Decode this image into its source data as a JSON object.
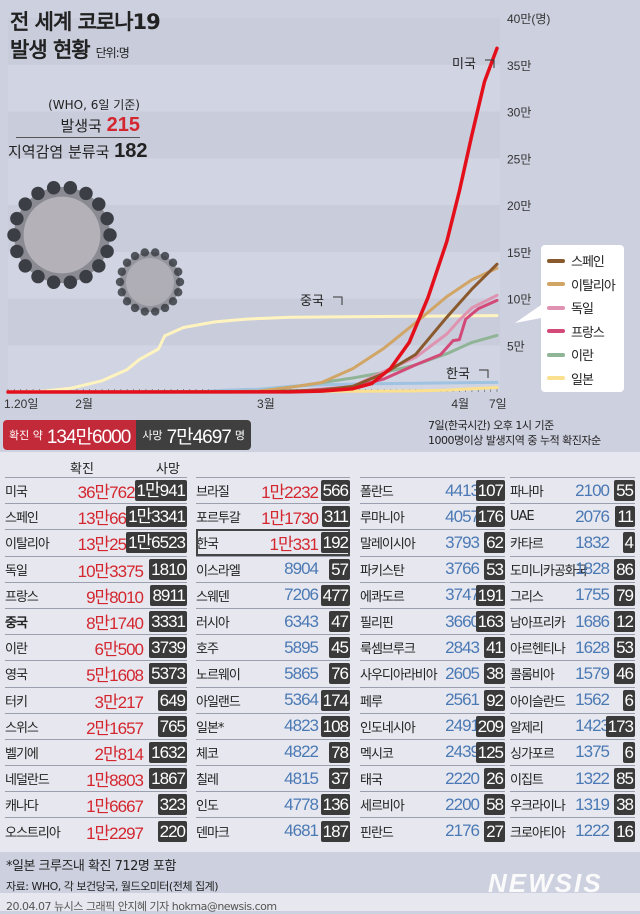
{
  "header": {
    "title_line1": "전 세계 코로나19",
    "title_line2": "발생 현황",
    "unit": "단위:명",
    "who_note": "(WHO, 6일 기준)",
    "occurrence_label": "발생국",
    "occurrence_count": "215",
    "local_label": "지역감염 분류국",
    "local_count": "182"
  },
  "chart_data": {
    "type": "line",
    "title": "전 세계 코로나19 발생 현황",
    "ylabel": "(명)",
    "xlabel": "",
    "ylim": [
      0,
      400000
    ],
    "y_ticks": [
      "5만",
      "10만",
      "15만",
      "20만",
      "25만",
      "30만",
      "35만",
      "40만(명)"
    ],
    "x_ticks": [
      {
        "label": "1.20일",
        "day": 0
      },
      {
        "label": "2월",
        "day": 12
      },
      {
        "label": "3월",
        "day": 41
      },
      {
        "label": "4월",
        "day": 72
      },
      {
        "label": "7일",
        "day": 78
      }
    ],
    "x_unit": "days since Jan 20",
    "annotations": [
      "미국",
      "중국",
      "한국"
    ],
    "series": [
      {
        "name": "미국",
        "color": "#e3101c",
        "points": [
          [
            0,
            0
          ],
          [
            45,
            0.01
          ],
          [
            50,
            0.1
          ],
          [
            55,
            0.35
          ],
          [
            58,
            0.9
          ],
          [
            61,
            2.5
          ],
          [
            64,
            5.3
          ],
          [
            67,
            10.1
          ],
          [
            70,
            16.1
          ],
          [
            72,
            21.5
          ],
          [
            74,
            27.5
          ],
          [
            76,
            33.2
          ],
          [
            78,
            36.76
          ]
        ]
      },
      {
        "name": "스페인",
        "color": "#8a5a2e",
        "points": [
          [
            0,
            0
          ],
          [
            40,
            0.01
          ],
          [
            50,
            0.2
          ],
          [
            55,
            0.6
          ],
          [
            60,
            2.0
          ],
          [
            65,
            4.0
          ],
          [
            70,
            8.0
          ],
          [
            74,
            11.0
          ],
          [
            78,
            13.67
          ]
        ]
      },
      {
        "name": "이탈리아",
        "color": "#d1a565",
        "points": [
          [
            0,
            0
          ],
          [
            35,
            0.02
          ],
          [
            40,
            0.1
          ],
          [
            45,
            0.5
          ],
          [
            50,
            1.0
          ],
          [
            55,
            2.5
          ],
          [
            60,
            4.7
          ],
          [
            65,
            7.4
          ],
          [
            70,
            10.2
          ],
          [
            74,
            12.0
          ],
          [
            78,
            13.25
          ]
        ]
      },
      {
        "name": "독일",
        "color": "#df93b0",
        "points": [
          [
            0,
            0
          ],
          [
            45,
            0.02
          ],
          [
            55,
            0.6
          ],
          [
            60,
            2.2
          ],
          [
            65,
            3.7
          ],
          [
            70,
            6.2
          ],
          [
            72,
            7.7
          ],
          [
            74,
            9.0
          ],
          [
            78,
            10.34
          ]
        ]
      },
      {
        "name": "프랑스",
        "color": "#d34a78",
        "points": [
          [
            0,
            0
          ],
          [
            45,
            0.02
          ],
          [
            55,
            0.5
          ],
          [
            60,
            1.4
          ],
          [
            65,
            2.9
          ],
          [
            69,
            4.0
          ],
          [
            71,
            5.5
          ],
          [
            72,
            5.6
          ],
          [
            73,
            7.8
          ],
          [
            75,
            8.9
          ],
          [
            78,
            9.8
          ]
        ]
      },
      {
        "name": "이란",
        "color": "#8fb596",
        "points": [
          [
            0,
            0
          ],
          [
            35,
            0.01
          ],
          [
            40,
            0.06
          ],
          [
            45,
            0.5
          ],
          [
            50,
            1.0
          ],
          [
            55,
            1.5
          ],
          [
            60,
            2.1
          ],
          [
            65,
            2.9
          ],
          [
            70,
            4.1
          ],
          [
            74,
            5.3
          ],
          [
            78,
            6.05
          ]
        ]
      },
      {
        "name": "일본",
        "color": "#fbe08f",
        "points": [
          [
            0,
            0
          ],
          [
            40,
            0.02
          ],
          [
            55,
            0.08
          ],
          [
            65,
            0.12
          ],
          [
            70,
            0.2
          ],
          [
            78,
            0.48
          ]
        ]
      },
      {
        "name": "한국",
        "color": "#9fc3e0",
        "points": [
          [
            0,
            0
          ],
          [
            30,
            0.01
          ],
          [
            35,
            0.2
          ],
          [
            40,
            0.3
          ],
          [
            45,
            0.6
          ],
          [
            50,
            0.78
          ],
          [
            55,
            0.84
          ],
          [
            60,
            0.9
          ],
          [
            70,
            0.97
          ],
          [
            78,
            1.03
          ]
        ]
      },
      {
        "name": "중국",
        "color": "#fff4bf",
        "points": [
          [
            0,
            0
          ],
          [
            5,
            0.05
          ],
          [
            10,
            0.4
          ],
          [
            15,
            1.2
          ],
          [
            19,
            2.4
          ],
          [
            21,
            3.5
          ],
          [
            24,
            4.6
          ],
          [
            25,
            6.0
          ],
          [
            28,
            6.9
          ],
          [
            33,
            7.5
          ],
          [
            38,
            7.8
          ],
          [
            45,
            8.0
          ],
          [
            78,
            8.17
          ]
        ]
      }
    ],
    "legend": [
      "스페인",
      "이탈리아",
      "독일",
      "프랑스",
      "이란",
      "일본"
    ],
    "legend_placement": "bottom-right"
  },
  "summary": {
    "confirmed_label": "확진 약",
    "confirmed": "134만6000",
    "deaths_label": "사망",
    "deaths": "7만4697",
    "deaths_unit": "명",
    "basis_line1": "7일(한국시간) 오후 1시 기준",
    "basis_line2": "1000명이상 발생지역 중 누적 확진자순"
  },
  "table": {
    "header_confirmed": "확진",
    "header_deaths": "사망",
    "columns": [
      [
        [
          "미국",
          "36만7629",
          "1만941"
        ],
        [
          "스페인",
          "13만6675",
          "1만3341"
        ],
        [
          "이탈리아",
          "13만2547",
          "1만6523"
        ],
        [
          "독일",
          "10만3375",
          "1810"
        ],
        [
          "프랑스",
          "9만8010",
          "8911"
        ],
        [
          "중국",
          "8만1740",
          "3331"
        ],
        [
          "이란",
          "6만500",
          "3739"
        ],
        [
          "영국",
          "5만1608",
          "5373"
        ],
        [
          "터키",
          "3만217",
          "649"
        ],
        [
          "스위스",
          "2만1657",
          "765"
        ],
        [
          "벨기에",
          "2만814",
          "1632"
        ],
        [
          "네덜란드",
          "1만8803",
          "1867"
        ],
        [
          "캐나다",
          "1만6667",
          "323"
        ],
        [
          "오스트리아",
          "1만2297",
          "220"
        ]
      ],
      [
        [
          "브라질",
          "1만2232",
          "566"
        ],
        [
          "포르투갈",
          "1만1730",
          "311"
        ],
        [
          "한국",
          "1만331",
          "192"
        ],
        [
          "이스라엘",
          "8904",
          "57"
        ],
        [
          "스웨덴",
          "7206",
          "477"
        ],
        [
          "러시아",
          "6343",
          "47"
        ],
        [
          "호주",
          "5895",
          "45"
        ],
        [
          "노르웨이",
          "5865",
          "76"
        ],
        [
          "아일랜드",
          "5364",
          "174"
        ],
        [
          "일본*",
          "4823",
          "108"
        ],
        [
          "체코",
          "4822",
          "78"
        ],
        [
          "칠레",
          "4815",
          "37"
        ],
        [
          "인도",
          "4778",
          "136"
        ],
        [
          "덴마크",
          "4681",
          "187"
        ]
      ],
      [
        [
          "폴란드",
          "4413",
          "107"
        ],
        [
          "루마니아",
          "4057",
          "176"
        ],
        [
          "말레이시아",
          "3793",
          "62"
        ],
        [
          "파키스탄",
          "3766",
          "53"
        ],
        [
          "에콰도르",
          "3747",
          "191"
        ],
        [
          "필리핀",
          "3660",
          "163"
        ],
        [
          "룩셈브루크",
          "2843",
          "41"
        ],
        [
          "사우디아라비아",
          "2605",
          "38"
        ],
        [
          "페루",
          "2561",
          "92"
        ],
        [
          "인도네시아",
          "2491",
          "209"
        ],
        [
          "멕시코",
          "2439",
          "125"
        ],
        [
          "태국",
          "2220",
          "26"
        ],
        [
          "세르비아",
          "2200",
          "58"
        ],
        [
          "핀란드",
          "2176",
          "27"
        ]
      ],
      [
        [
          "파나마",
          "2100",
          "55"
        ],
        [
          "UAE",
          "2076",
          "11"
        ],
        [
          "카타르",
          "1832",
          "4"
        ],
        [
          "도미니카공화국",
          "1828",
          "86"
        ],
        [
          "그리스",
          "1755",
          "79"
        ],
        [
          "남아프리카",
          "1686",
          "12"
        ],
        [
          "아르헨티나",
          "1628",
          "53"
        ],
        [
          "콜롬비아",
          "1579",
          "46"
        ],
        [
          "아이슬란드",
          "1562",
          "6"
        ],
        [
          "알제리",
          "1423",
          "173"
        ],
        [
          "싱가포르",
          "1375",
          "6"
        ],
        [
          "이집트",
          "1322",
          "85"
        ],
        [
          "우크라이나",
          "1319",
          "38"
        ],
        [
          "크로아티아",
          "1222",
          "16"
        ]
      ]
    ]
  },
  "footer": {
    "note": "*일본 크루즈내 확진 712명 포함",
    "source": "자료: WHO, 각 보건당국, 월드오미터(전체 집계)",
    "credit": "20.04.07 뉴시스 그래픽 안지혜 기자 hokma@newsis.com",
    "logo": "NEWSIS"
  }
}
